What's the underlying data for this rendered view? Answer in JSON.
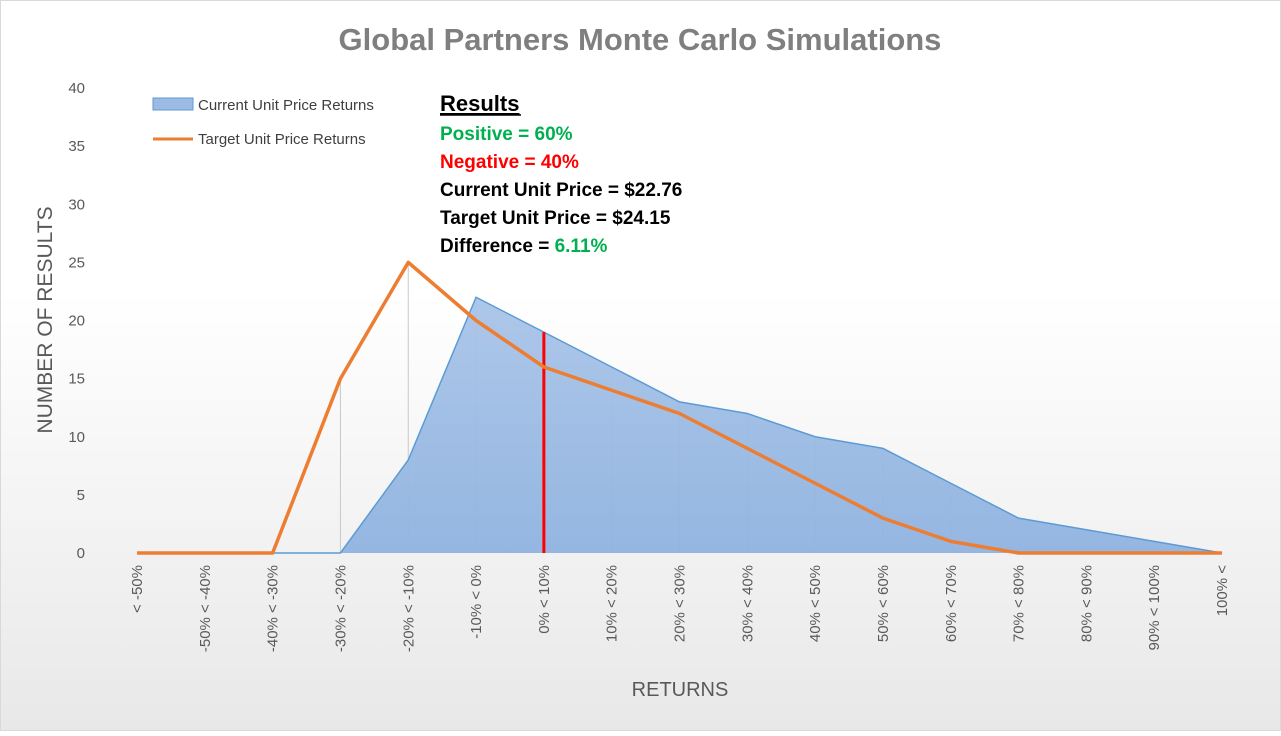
{
  "chart_data": {
    "type": "area",
    "title": "Global Partners Monte Carlo Simulations",
    "xlabel": "RETURNS",
    "ylabel": "NUMBER OF RESULTS",
    "ylim": [
      0,
      40
    ],
    "yticks": [
      0,
      5,
      10,
      15,
      20,
      25,
      30,
      35,
      40
    ],
    "grid": false,
    "legend_position": "top-left",
    "categories": [
      "< -50%",
      "-50% < -40%",
      "-40% < -30%",
      "-30% < -20%",
      "-20% < -10%",
      "-10% < 0%",
      "0% < 10%",
      "10% < 20%",
      "20% < 30%",
      "30% < 40%",
      "40% < 50%",
      "50% < 60%",
      "60% < 70%",
      "70% < 80%",
      "80% < 90%",
      "90% < 100%",
      "100% <"
    ],
    "series": [
      {
        "name": "Current Unit Price Returns",
        "type": "area",
        "color": "#8eb4e3",
        "stroke": "#5b9bd5",
        "values": [
          0,
          0,
          0,
          0,
          8,
          22,
          19,
          16,
          13,
          12,
          10,
          9,
          6,
          3,
          2,
          1,
          0
        ]
      },
      {
        "name": "Target Unit Price Returns",
        "type": "line",
        "color": "#ed7d31",
        "values": [
          0,
          0,
          0,
          15,
          25,
          20,
          16,
          14,
          12,
          9,
          6,
          3,
          1,
          0,
          0,
          0,
          0
        ]
      }
    ],
    "reference_line": {
      "category_position": 6,
      "y_top": 19,
      "color": "#ff0000"
    },
    "annotation": {
      "heading": "Results",
      "positive_label": "Positive = ",
      "positive_value": "60%",
      "negative_label": "Negative = ",
      "negative_value": "40%",
      "current_price": "Current Unit Price = $22.76",
      "target_price": "Target Unit Price = $24.15",
      "difference_label": "Difference = ",
      "difference_value": "6.11%",
      "positive_color": "#00b050",
      "negative_color": "#ff0000"
    }
  }
}
